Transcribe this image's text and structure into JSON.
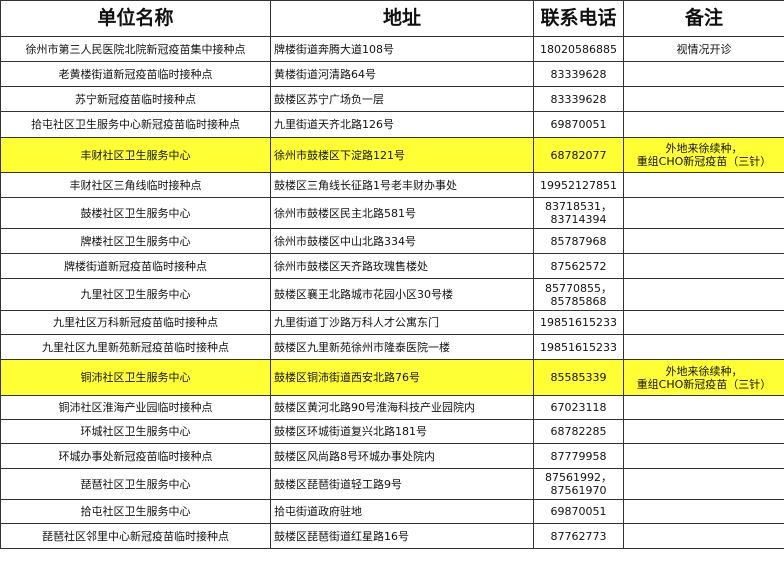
{
  "table": {
    "header": [
      "单位名称",
      "地址",
      "联系电话",
      "备注"
    ],
    "rows": [
      {
        "cells": [
          "徐州市第三人民医院北院新冠疫苗集中接种点",
          "牌楼街道奔腾大道108号",
          "18020586885",
          "视情况开诊"
        ]
      },
      {
        "cells": [
          "老黄楼街道新冠疫苗临时接种点",
          "黄楼街道河清路64号",
          "83339628"
        ]
      },
      {
        "cells": [
          "苏宁新冠疫苗临时接种点",
          "鼓楼区苏宁广场负一层",
          "83339628"
        ]
      },
      {
        "cells": [
          "拾屯社区卫生服务中心新冠疫苗临时接种点",
          "九里街道天齐北路126号",
          "69870051"
        ]
      },
      {
        "cells": [
          "丰财社区卫生服务中心",
          "徐州市鼓楼区下淀路121号",
          "68782077",
          "外地来徐续种，\n重组CHO新冠疫苗（三针）"
        ],
        "highlight": true
      },
      {
        "cells": [
          "丰财社区三角线临时接种点",
          "鼓楼区三角线长征路1号老丰财办事处",
          "19952127851"
        ]
      },
      {
        "cells": [
          "鼓楼社区卫生服务中心",
          "徐州市鼓楼区民主北路581号",
          "83718531，\n83714394"
        ]
      },
      {
        "cells": [
          "牌楼社区卫生服务中心",
          "徐州市鼓楼区中山北路334号",
          "85787968"
        ]
      },
      {
        "cells": [
          "牌楼街道新冠疫苗临时接种点",
          "徐州市鼓楼区天齐路玫瑰售楼处",
          "87562572"
        ]
      },
      {
        "cells": [
          "九里社区卫生服务中心",
          "鼓楼区襄王北路城市花园小区30号楼",
          "85770855，\n85785868"
        ]
      },
      {
        "cells": [
          "九里社区万科新冠疫苗临时接种点",
          "九里街道丁沙路万科人才公寓东门",
          "19851615233"
        ]
      },
      {
        "cells": [
          "九里社区九里新苑新冠疫苗临时接种点",
          "鼓楼区九里新苑徐州市隆泰医院一楼",
          "19851615233"
        ]
      },
      {
        "cells": [
          "铜沛社区卫生服务中心",
          "鼓楼区铜沛街道西安北路76号",
          "85585339",
          "外地来徐续种，\n重组CHO新冠疫苗（三针）"
        ],
        "highlight": true
      },
      {
        "cells": [
          "铜沛社区淮海产业园临时接种点",
          "鼓楼区黄河北路90号淮海科技产业园院内",
          "67023118"
        ]
      },
      {
        "cells": [
          "环城社区卫生服务中心",
          "鼓楼区环城街道复兴北路181号",
          "68782285"
        ]
      },
      {
        "cells": [
          "环城办事处新冠疫苗临时接种点",
          "鼓楼区风尚路8号环城办事处院内",
          "87779958"
        ]
      },
      {
        "cells": [
          "琵琶社区卫生服务中心",
          "鼓楼区琵琶街道轻工路9号",
          "87561992，\n87561970"
        ]
      },
      {
        "cells": [
          "拾屯社区卫生服务中心",
          "拾屯街道政府驻地",
          "69870051"
        ]
      },
      {
        "cells": [
          "琵琶社区邻里中心新冠疫苗临时接种点",
          "鼓楼区琵琶街道红星路16号",
          "87762773"
        ]
      }
    ]
  }
}
